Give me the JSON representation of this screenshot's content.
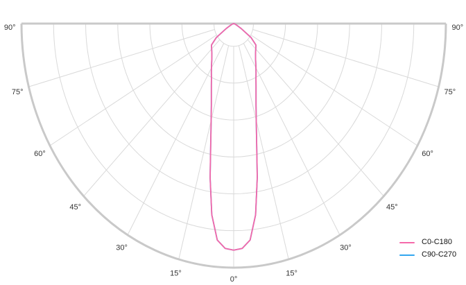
{
  "chart_data": {
    "type": "polar-line",
    "subtype": "photometric-distribution",
    "title": "",
    "xlabel": "",
    "ylabel": "",
    "angle_axis": {
      "unit": "degrees",
      "range_deg": [
        -90,
        90
      ],
      "tick_step_deg": 15,
      "tick_labels": [
        "0°",
        "15°",
        "30°",
        "45°",
        "60°",
        "75°",
        "90°"
      ],
      "mirrored_both_sides": true,
      "zero_direction": "down"
    },
    "radial_axis": {
      "rings": 6,
      "show_ring_values": false,
      "rmax_relative": 1.0
    },
    "legend": {
      "position": "bottom-right"
    },
    "series": [
      {
        "name": "C0-C180",
        "color": "#f568a9",
        "symmetric": true,
        "angles_deg": [
          0,
          2.5,
          5,
          7.5,
          10,
          12.5,
          15,
          17.5,
          20,
          22.5,
          25,
          27.5,
          30,
          35,
          40,
          45,
          50,
          55,
          60,
          65,
          70,
          75,
          80,
          85,
          90
        ],
        "values_rel": [
          0.928,
          0.922,
          0.89,
          0.79,
          0.64,
          0.5,
          0.41,
          0.35,
          0.308,
          0.275,
          0.248,
          0.228,
          0.21,
          0.18,
          0.16,
          0.147,
          0.137,
          0.1,
          0.04,
          0.015,
          0.007,
          0.003,
          0.0015,
          0.0008,
          0
        ]
      },
      {
        "name": "C90-C270",
        "color": "#32a6ef",
        "symmetric": true,
        "angles_deg": [
          0,
          2.5,
          5,
          7.5,
          10,
          12.5,
          15,
          17.5,
          20,
          22.5,
          25,
          27.5,
          30,
          35,
          40,
          45,
          50,
          55,
          60,
          65,
          70,
          75,
          80,
          85,
          90
        ],
        "values_rel": [
          0.928,
          0.922,
          0.89,
          0.79,
          0.64,
          0.5,
          0.41,
          0.35,
          0.308,
          0.275,
          0.248,
          0.228,
          0.21,
          0.18,
          0.16,
          0.147,
          0.137,
          0.1,
          0.04,
          0.015,
          0.007,
          0.003,
          0.0015,
          0.0008,
          0
        ]
      }
    ]
  },
  "colors": {
    "background": "#ffffff",
    "grid": "#d9d9d9",
    "outline": "#c9c9c9",
    "tick_label": "#333333",
    "legend_text": "#111111"
  }
}
